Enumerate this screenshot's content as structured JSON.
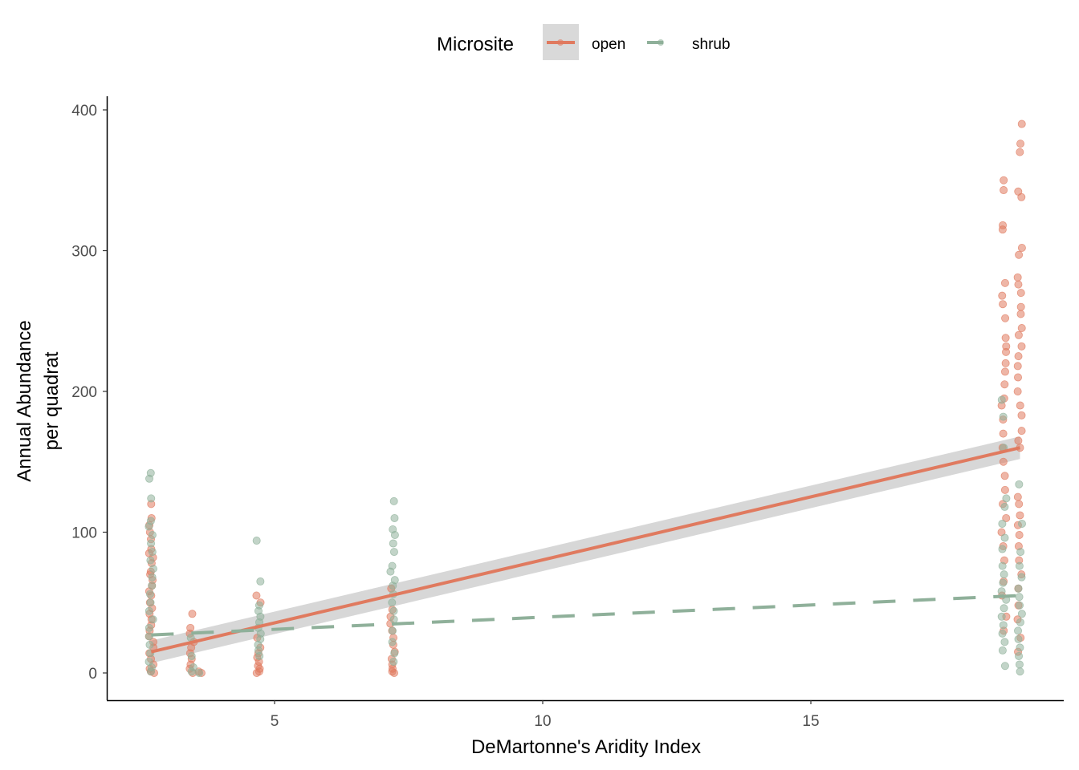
{
  "chart_data": {
    "type": "scatter",
    "title": "",
    "xlabel": "DeMartonne's Aridity Index",
    "ylabel_lines": [
      "Annual Abundance",
      "per quadrat"
    ],
    "xlim": [
      1.9,
      19.7
    ],
    "ylim": [
      -20,
      410
    ],
    "xticks": [
      5,
      10,
      15
    ],
    "yticks": [
      0,
      100,
      200,
      300,
      400
    ],
    "grid": false,
    "legend": {
      "title": "Microsite",
      "placement": "top",
      "entries": [
        {
          "name": "open",
          "color": "#E07A5F"
        },
        {
          "name": "shrub",
          "color": "#8FB09A"
        }
      ]
    },
    "series": [
      {
        "name": "open",
        "color": "#E07A5F",
        "points": [
          [
            2.7,
            120
          ],
          [
            2.7,
            110
          ],
          [
            2.7,
            105
          ],
          [
            2.7,
            100
          ],
          [
            2.7,
            95
          ],
          [
            2.7,
            88
          ],
          [
            2.7,
            85
          ],
          [
            2.7,
            82
          ],
          [
            2.7,
            78
          ],
          [
            2.7,
            72
          ],
          [
            2.7,
            70
          ],
          [
            2.7,
            66
          ],
          [
            2.7,
            62
          ],
          [
            2.7,
            58
          ],
          [
            2.7,
            55
          ],
          [
            2.7,
            50
          ],
          [
            2.7,
            46
          ],
          [
            2.7,
            42
          ],
          [
            2.7,
            38
          ],
          [
            2.7,
            34
          ],
          [
            2.7,
            30
          ],
          [
            2.7,
            26
          ],
          [
            2.7,
            22
          ],
          [
            2.7,
            18
          ],
          [
            2.7,
            14
          ],
          [
            2.7,
            10
          ],
          [
            2.7,
            6
          ],
          [
            2.7,
            3
          ],
          [
            2.7,
            1
          ],
          [
            2.75,
            0
          ],
          [
            3.45,
            42
          ],
          [
            3.45,
            32
          ],
          [
            3.45,
            28
          ],
          [
            3.45,
            22
          ],
          [
            3.45,
            18
          ],
          [
            3.45,
            14
          ],
          [
            3.45,
            10
          ],
          [
            3.45,
            6
          ],
          [
            3.45,
            3
          ],
          [
            3.45,
            0
          ],
          [
            3.6,
            1
          ],
          [
            3.65,
            0
          ],
          [
            4.7,
            55
          ],
          [
            4.7,
            50
          ],
          [
            4.7,
            25
          ],
          [
            4.7,
            18
          ],
          [
            4.7,
            14
          ],
          [
            4.7,
            11
          ],
          [
            4.7,
            8
          ],
          [
            4.7,
            5
          ],
          [
            4.7,
            3
          ],
          [
            4.7,
            1
          ],
          [
            4.7,
            0
          ],
          [
            7.2,
            60
          ],
          [
            7.2,
            45
          ],
          [
            7.2,
            40
          ],
          [
            7.2,
            35
          ],
          [
            7.2,
            30
          ],
          [
            7.2,
            25
          ],
          [
            7.2,
            20
          ],
          [
            7.2,
            15
          ],
          [
            7.2,
            10
          ],
          [
            7.2,
            6
          ],
          [
            7.2,
            3
          ],
          [
            7.2,
            1
          ],
          [
            7.2,
            0
          ],
          [
            18.6,
            350
          ],
          [
            18.6,
            343
          ],
          [
            18.6,
            318
          ],
          [
            18.6,
            315
          ],
          [
            18.6,
            277
          ],
          [
            18.6,
            268
          ],
          [
            18.6,
            262
          ],
          [
            18.6,
            252
          ],
          [
            18.6,
            238
          ],
          [
            18.6,
            232
          ],
          [
            18.6,
            228
          ],
          [
            18.6,
            220
          ],
          [
            18.6,
            214
          ],
          [
            18.6,
            205
          ],
          [
            18.6,
            195
          ],
          [
            18.6,
            190
          ],
          [
            18.6,
            180
          ],
          [
            18.6,
            170
          ],
          [
            18.6,
            160
          ],
          [
            18.6,
            150
          ],
          [
            18.6,
            140
          ],
          [
            18.6,
            130
          ],
          [
            18.6,
            120
          ],
          [
            18.6,
            110
          ],
          [
            18.6,
            100
          ],
          [
            18.6,
            90
          ],
          [
            18.6,
            80
          ],
          [
            18.6,
            65
          ],
          [
            18.6,
            55
          ],
          [
            18.6,
            40
          ],
          [
            18.6,
            30
          ],
          [
            18.9,
            390
          ],
          [
            18.9,
            376
          ],
          [
            18.9,
            370
          ],
          [
            18.9,
            342
          ],
          [
            18.9,
            338
          ],
          [
            18.9,
            302
          ],
          [
            18.9,
            297
          ],
          [
            18.9,
            281
          ],
          [
            18.9,
            276
          ],
          [
            18.9,
            270
          ],
          [
            18.9,
            260
          ],
          [
            18.9,
            255
          ],
          [
            18.9,
            245
          ],
          [
            18.9,
            240
          ],
          [
            18.9,
            232
          ],
          [
            18.9,
            225
          ],
          [
            18.9,
            218
          ],
          [
            18.9,
            210
          ],
          [
            18.9,
            200
          ],
          [
            18.9,
            190
          ],
          [
            18.9,
            183
          ],
          [
            18.9,
            172
          ],
          [
            18.9,
            165
          ],
          [
            18.9,
            160
          ],
          [
            18.9,
            125
          ],
          [
            18.9,
            120
          ],
          [
            18.9,
            112
          ],
          [
            18.9,
            105
          ],
          [
            18.9,
            98
          ],
          [
            18.9,
            90
          ],
          [
            18.9,
            80
          ],
          [
            18.9,
            70
          ],
          [
            18.9,
            60
          ],
          [
            18.9,
            48
          ],
          [
            18.9,
            38
          ],
          [
            18.9,
            25
          ],
          [
            18.9,
            15
          ]
        ],
        "trend": {
          "x": [
            2.7,
            18.9
          ],
          "y": [
            15,
            160
          ],
          "style": "solid",
          "ci_halfwidth": [
            8,
            8
          ]
        }
      },
      {
        "name": "shrub",
        "color": "#8FB09A",
        "points": [
          [
            2.7,
            142
          ],
          [
            2.7,
            138
          ],
          [
            2.7,
            124
          ],
          [
            2.7,
            108
          ],
          [
            2.7,
            104
          ],
          [
            2.7,
            98
          ],
          [
            2.7,
            92
          ],
          [
            2.7,
            86
          ],
          [
            2.7,
            80
          ],
          [
            2.7,
            74
          ],
          [
            2.7,
            68
          ],
          [
            2.7,
            62
          ],
          [
            2.7,
            56
          ],
          [
            2.7,
            50
          ],
          [
            2.7,
            44
          ],
          [
            2.7,
            38
          ],
          [
            2.7,
            32
          ],
          [
            2.7,
            26
          ],
          [
            2.7,
            20
          ],
          [
            2.7,
            14
          ],
          [
            2.7,
            8
          ],
          [
            2.7,
            4
          ],
          [
            2.7,
            1
          ],
          [
            3.45,
            25
          ],
          [
            3.45,
            12
          ],
          [
            3.45,
            4
          ],
          [
            3.45,
            1
          ],
          [
            3.6,
            0
          ],
          [
            4.7,
            94
          ],
          [
            4.7,
            65
          ],
          [
            4.7,
            48
          ],
          [
            4.7,
            44
          ],
          [
            4.7,
            40
          ],
          [
            4.7,
            36
          ],
          [
            4.7,
            32
          ],
          [
            4.7,
            28
          ],
          [
            4.7,
            24
          ],
          [
            4.7,
            20
          ],
          [
            4.7,
            16
          ],
          [
            4.7,
            12
          ],
          [
            7.2,
            122
          ],
          [
            7.2,
            110
          ],
          [
            7.2,
            102
          ],
          [
            7.2,
            98
          ],
          [
            7.2,
            92
          ],
          [
            7.2,
            86
          ],
          [
            7.2,
            76
          ],
          [
            7.2,
            72
          ],
          [
            7.2,
            66
          ],
          [
            7.2,
            62
          ],
          [
            7.2,
            56
          ],
          [
            7.2,
            50
          ],
          [
            7.2,
            44
          ],
          [
            7.2,
            38
          ],
          [
            7.2,
            30
          ],
          [
            7.2,
            22
          ],
          [
            7.2,
            14
          ],
          [
            7.2,
            8
          ],
          [
            18.6,
            194
          ],
          [
            18.6,
            182
          ],
          [
            18.6,
            160
          ],
          [
            18.6,
            124
          ],
          [
            18.6,
            118
          ],
          [
            18.6,
            106
          ],
          [
            18.6,
            96
          ],
          [
            18.6,
            88
          ],
          [
            18.6,
            76
          ],
          [
            18.6,
            70
          ],
          [
            18.6,
            64
          ],
          [
            18.6,
            58
          ],
          [
            18.6,
            52
          ],
          [
            18.6,
            46
          ],
          [
            18.6,
            40
          ],
          [
            18.6,
            34
          ],
          [
            18.6,
            28
          ],
          [
            18.6,
            22
          ],
          [
            18.6,
            16
          ],
          [
            18.6,
            5
          ],
          [
            18.9,
            134
          ],
          [
            18.9,
            106
          ],
          [
            18.9,
            86
          ],
          [
            18.9,
            76
          ],
          [
            18.9,
            68
          ],
          [
            18.9,
            60
          ],
          [
            18.9,
            54
          ],
          [
            18.9,
            48
          ],
          [
            18.9,
            42
          ],
          [
            18.9,
            36
          ],
          [
            18.9,
            30
          ],
          [
            18.9,
            24
          ],
          [
            18.9,
            18
          ],
          [
            18.9,
            12
          ],
          [
            18.9,
            6
          ],
          [
            18.9,
            1
          ]
        ],
        "trend": {
          "x": [
            2.7,
            18.9
          ],
          "y": [
            27,
            55
          ],
          "style": "dashed"
        }
      }
    ]
  }
}
